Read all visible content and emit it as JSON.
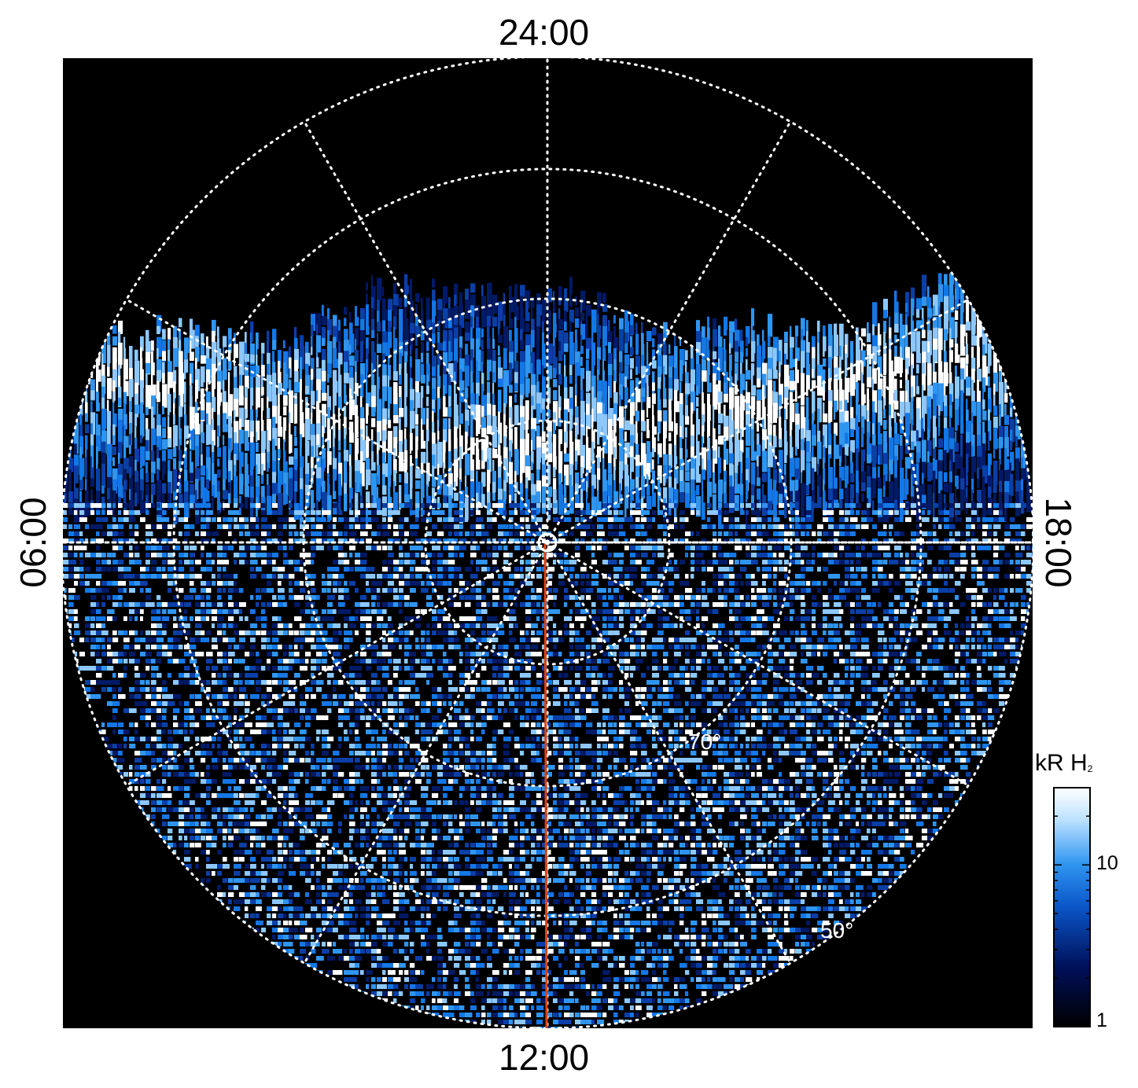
{
  "map": {
    "local_time_labels": {
      "top": "24:00",
      "bottom": "12:00",
      "left": "06:00",
      "right": "18:00"
    },
    "latitude_labels": {
      "inner": "70°",
      "outer": "50°"
    },
    "colorbar": {
      "title": "kR H",
      "title_subscript": "2",
      "scale": "log",
      "range": [
        1,
        30
      ],
      "ticks": [
        "10",
        "1"
      ],
      "colors": [
        "#000000",
        "#00105a",
        "#0a55c8",
        "#2f95f0",
        "#bfe3ff",
        "#ffffff"
      ]
    },
    "colors": {
      "background": "#000000",
      "grid": "#ffffff",
      "meridian_line": "#e04010",
      "emission_low": "#001a66",
      "emission_mid": "#1477e6",
      "emission_high": "#ffffff"
    },
    "grid": "dotted"
  }
}
